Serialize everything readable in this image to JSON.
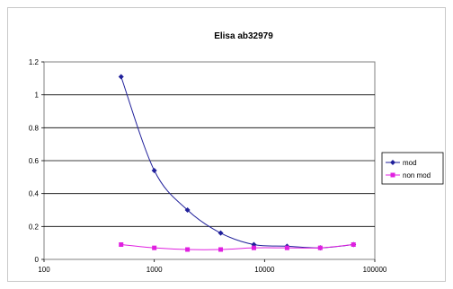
{
  "chart_data": {
    "type": "line",
    "title": "Elisa ab32979",
    "xlabel": "",
    "ylabel": "",
    "x_scale": "log",
    "xlim": [
      100,
      100000
    ],
    "ylim": [
      0,
      1.2
    ],
    "x_ticks": [
      100,
      1000,
      10000,
      100000
    ],
    "x_tick_labels": [
      "100",
      "1000",
      "10000",
      "100000"
    ],
    "y_ticks": [
      0,
      0.2,
      0.4,
      0.6,
      0.8,
      1,
      1.2
    ],
    "y_tick_labels": [
      "0",
      "0.2",
      "0.4",
      "0.6",
      "0.8",
      "1",
      "1.2"
    ],
    "grid": "horizontal",
    "legend_position": "right",
    "x": [
      500,
      1000,
      2000,
      4000,
      8000,
      16000,
      32000,
      64000
    ],
    "series": [
      {
        "name": "mod",
        "color": "#1f1f9a",
        "marker": "diamond",
        "values": [
          1.11,
          0.54,
          0.3,
          0.16,
          0.09,
          0.08,
          0.07,
          0.09
        ]
      },
      {
        "name": "non mod",
        "color": "#e020e0",
        "marker": "square",
        "values": [
          0.09,
          0.07,
          0.06,
          0.06,
          0.07,
          0.07,
          0.07,
          0.09
        ]
      }
    ]
  }
}
